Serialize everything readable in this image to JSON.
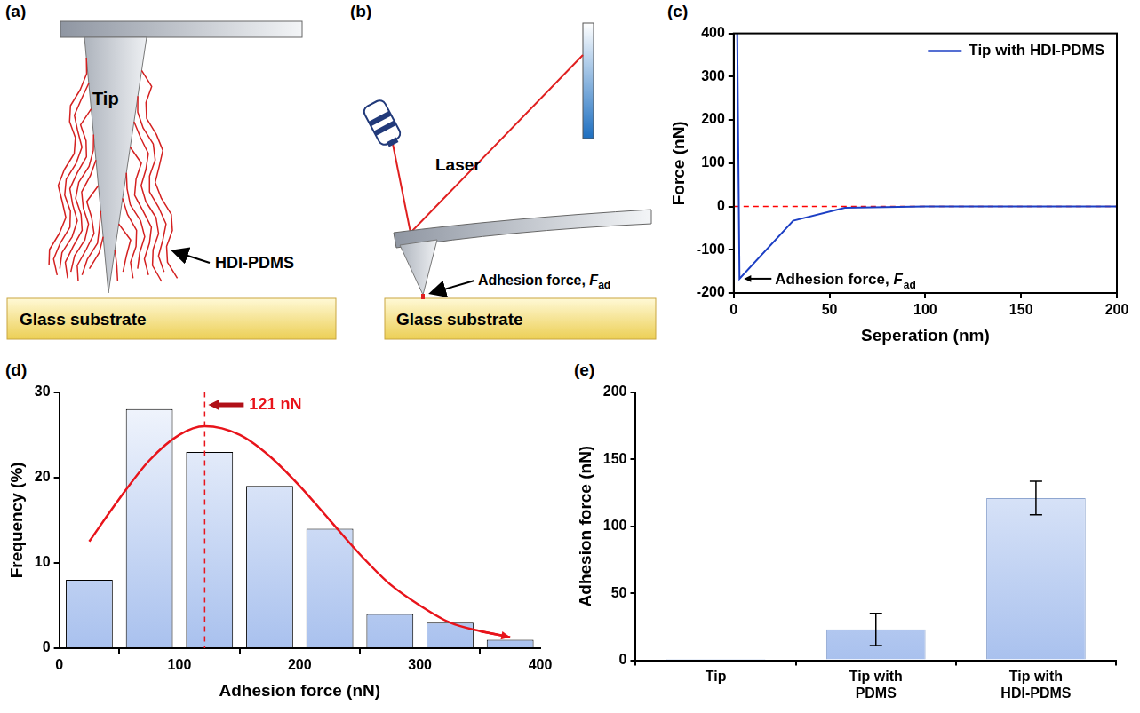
{
  "diagrams": [
    {
      "panel": "(a)",
      "labels": {
        "tip": "Tip",
        "molecule": "HDI-PDMS",
        "substrate": "Glass substrate"
      }
    },
    {
      "panel": "(b)",
      "labels": {
        "laser": "Laser",
        "force": "Adhesion force, F",
        "force_subscript": "ad",
        "substrate": "Glass substrate"
      }
    }
  ],
  "chart_data": [
    {
      "panel": "(c)",
      "type": "line",
      "x_label": "Seperation (nm)",
      "y_label": "Force (nN)",
      "series": [
        {
          "name": "Tip with HDI-PDMS",
          "color": "#1c3fc4",
          "x": [
            1.8,
            3,
            31,
            58,
            100,
            150,
            200
          ],
          "values": [
            400,
            -167,
            -33,
            -3,
            0,
            0,
            0
          ]
        }
      ],
      "xlim": [
        0,
        200
      ],
      "xticks": [
        0,
        50,
        100,
        150,
        200
      ],
      "ylim": [
        -200,
        400
      ],
      "yticks": [
        -200,
        -100,
        0,
        100,
        200,
        300,
        400
      ],
      "legend": "upper right",
      "grid": false,
      "reference_lines": [
        {
          "y": 0,
          "color": "#ff0000",
          "line_style": "dashed"
        }
      ],
      "annotations": [
        {
          "text": "Adhesion force, F",
          "subscript": "ad",
          "x": 3,
          "y": -167
        }
      ]
    },
    {
      "panel": "(d)",
      "type": "histogram",
      "x_label": "Adhesion force (nN)",
      "y_label": "Frequency (%)",
      "bins": [
        0,
        50,
        100,
        150,
        200,
        250,
        300,
        350,
        400
      ],
      "values": [
        8,
        28,
        23,
        19,
        14,
        4,
        3,
        1
      ],
      "color": "#a9c1ee",
      "xlim": [
        0,
        400
      ],
      "xticks": [
        0,
        100,
        200,
        300,
        400
      ],
      "ylim": [
        0,
        30
      ],
      "yticks": [
        0,
        10,
        20,
        30
      ],
      "grid": false,
      "fit": {
        "x": [
          25,
          50,
          75,
          100,
          121,
          150,
          175,
          200,
          225,
          250,
          275,
          300,
          325,
          350,
          375
        ],
        "values": [
          12.5,
          17.5,
          22,
          25,
          26,
          25,
          22.5,
          19,
          15,
          11,
          7.5,
          5,
          3,
          2,
          1.3
        ],
        "color": "#e8141b"
      },
      "reference_lines": [
        {
          "x": 121,
          "color": "#e8141b",
          "line_style": "dashed"
        }
      ],
      "annotations": [
        {
          "text": "121 nN",
          "x": 121,
          "y": 28.5
        }
      ]
    },
    {
      "panel": "(e)",
      "type": "bar",
      "y_label": "Adhesion force (nN)",
      "categories": [
        "Tip",
        "Tip with PDMS",
        "Tip with HDI-PDMS"
      ],
      "values": [
        1,
        23,
        121
      ],
      "errors": [
        null,
        12,
        12.5
      ],
      "color": "#a9c1ee",
      "ylim": [
        0,
        200
      ],
      "yticks": [
        0,
        50,
        100,
        150,
        200
      ],
      "grid": false
    }
  ]
}
